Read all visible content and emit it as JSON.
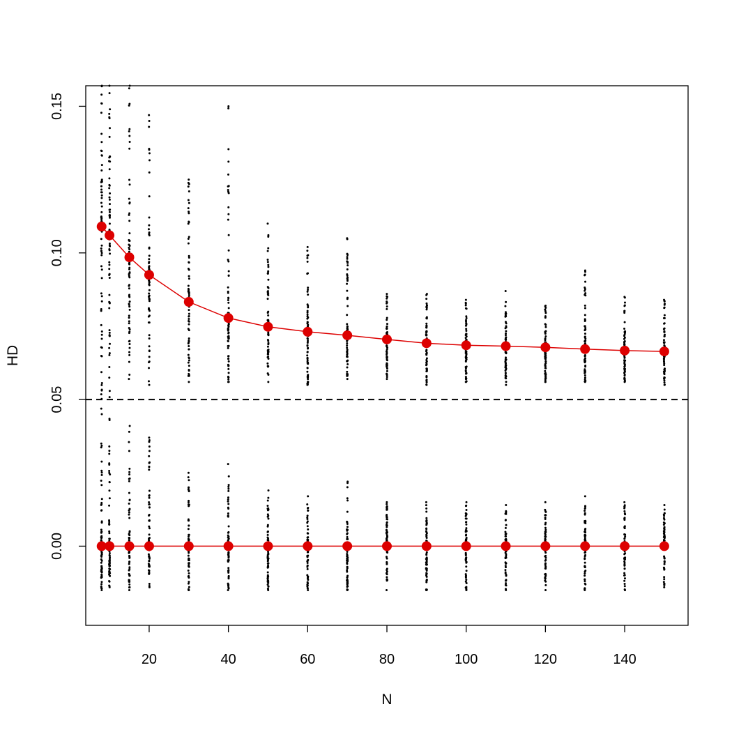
{
  "chart_data": {
    "type": "scatter",
    "title": "",
    "xlabel": "N",
    "ylabel": "HD",
    "xlim": [
      4,
      156
    ],
    "ylim": [
      -0.027,
      0.157
    ],
    "x_ticks": [
      20,
      40,
      60,
      80,
      100,
      120,
      140
    ],
    "x_tick_labels": [
      "20",
      "40",
      "60",
      "80",
      "100",
      "120",
      "140"
    ],
    "y_ticks": [
      0.0,
      0.05,
      0.1,
      0.15
    ],
    "y_tick_labels": [
      "0.00",
      "0.05",
      "0.10",
      "0.15"
    ],
    "grid": false,
    "legend": "none",
    "reference_line": {
      "y": 0.05,
      "style": "dashed",
      "color": "#000000"
    },
    "x": [
      8,
      10,
      15,
      20,
      30,
      40,
      50,
      60,
      70,
      80,
      90,
      100,
      110,
      120,
      130,
      140,
      150
    ],
    "series": [
      {
        "values": [
          0.109,
          0.106,
          0.0985,
          0.0925,
          0.0833,
          0.0778,
          0.0748,
          0.0731,
          0.0719,
          0.0705,
          0.0692,
          0.0685,
          0.0682,
          0.0678,
          0.0672,
          0.0667,
          0.0664
        ],
        "color": "#dd0000",
        "style": "line+points"
      },
      {
        "values": [
          0,
          0,
          0,
          0,
          0,
          0,
          0,
          0,
          0,
          0,
          0,
          0,
          0,
          0,
          0,
          0,
          0
        ],
        "color": "#dd0000",
        "style": "line+points"
      }
    ],
    "scatter_clouds": {
      "color": "#000000",
      "upper_min": [
        0.045,
        0.043,
        0.057,
        0.055,
        0.056,
        0.056,
        0.056,
        0.055,
        0.057,
        0.057,
        0.055,
        0.056,
        0.055,
        0.056,
        0.056,
        0.056,
        0.055
      ],
      "upper_max": [
        0.157,
        0.157,
        0.157,
        0.147,
        0.125,
        0.15,
        0.11,
        0.102,
        0.105,
        0.086,
        0.086,
        0.084,
        0.087,
        0.082,
        0.094,
        0.085,
        0.084
      ],
      "lower_min": [
        -0.015,
        -0.014,
        -0.015,
        -0.014,
        -0.015,
        -0.015,
        -0.015,
        -0.015,
        -0.015,
        -0.015,
        -0.015,
        -0.015,
        -0.015,
        -0.015,
        -0.015,
        -0.015,
        -0.014
      ],
      "lower_max": [
        0.035,
        0.034,
        0.041,
        0.037,
        0.025,
        0.028,
        0.019,
        0.017,
        0.022,
        0.015,
        0.015,
        0.015,
        0.014,
        0.015,
        0.017,
        0.015,
        0.014
      ]
    }
  }
}
